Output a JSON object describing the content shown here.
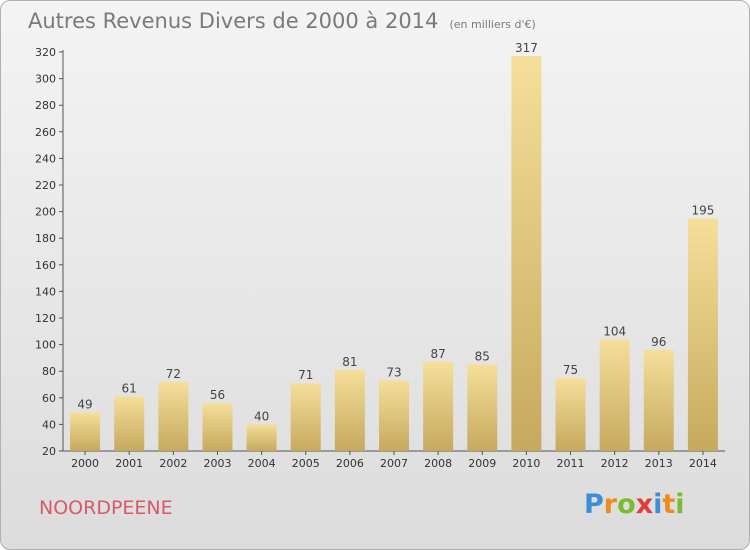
{
  "title": "Autres Revenus Divers de 2000 à 2014",
  "subtitle": "(en milliers d'€)",
  "commune": "NOORDPEENE",
  "logo": {
    "text": "Proxiti",
    "letters": [
      "P",
      "r",
      "o",
      "x",
      "i",
      "t",
      "i"
    ]
  },
  "colors": {
    "bar_light": "#f5df9a",
    "bar_dark": "#c6a95e",
    "title": "#7a7a7a",
    "commune": "#d85a6a"
  },
  "chart_data": {
    "type": "bar",
    "categories": [
      "2000",
      "2001",
      "2002",
      "2003",
      "2004",
      "2005",
      "2006",
      "2007",
      "2008",
      "2009",
      "2010",
      "2011",
      "2012",
      "2013",
      "2014"
    ],
    "values": [
      49,
      61,
      72,
      56,
      40,
      71,
      81,
      73,
      87,
      85,
      317,
      75,
      104,
      96,
      195
    ],
    "ylim": [
      20,
      320
    ],
    "yticks": [
      20,
      40,
      60,
      80,
      100,
      120,
      140,
      160,
      180,
      200,
      220,
      240,
      260,
      280,
      300,
      320
    ],
    "grid": false,
    "data_labels": true
  }
}
